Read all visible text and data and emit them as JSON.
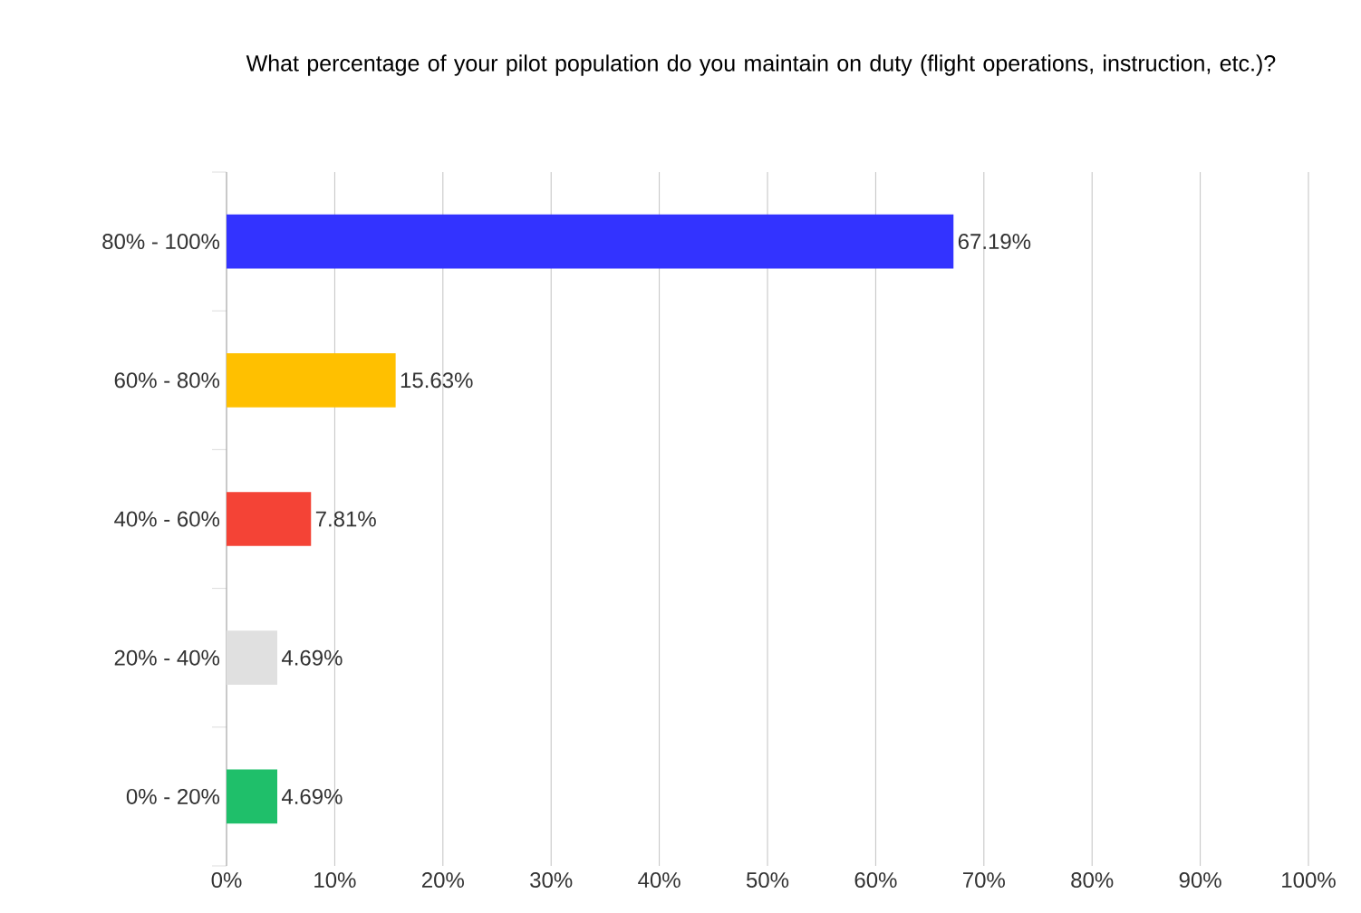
{
  "chart_data": {
    "type": "bar",
    "orientation": "horizontal",
    "title": "What percentage of your pilot population do you maintain on duty (flight operations, instruction, etc.)?",
    "categories": [
      "80% - 100%",
      "60% - 80%",
      "40% - 60%",
      "20% - 40%",
      "0% - 20%"
    ],
    "values": [
      67.19,
      15.63,
      7.81,
      4.69,
      4.69
    ],
    "colors": [
      "#3333ff",
      "#ffc000",
      "#f44336",
      "#e0e0e0",
      "#1fbf6a"
    ],
    "value_labels": [
      "67.19%",
      "15.63%",
      "7.81%",
      "4.69%",
      "4.69%"
    ],
    "xlim": [
      0,
      100
    ],
    "xticks": [
      {
        "value": 0,
        "label": "0%"
      },
      {
        "value": 10,
        "label": "10%"
      },
      {
        "value": 20,
        "label": "20%"
      },
      {
        "value": 30,
        "label": "30%"
      },
      {
        "value": 40,
        "label": "40%"
      },
      {
        "value": 50,
        "label": "50%"
      },
      {
        "value": 60,
        "label": "60%"
      },
      {
        "value": 70,
        "label": "70%"
      },
      {
        "value": 80,
        "label": "80%"
      },
      {
        "value": 90,
        "label": "90%"
      },
      {
        "value": 100,
        "label": "100%"
      }
    ],
    "grid": "x"
  }
}
